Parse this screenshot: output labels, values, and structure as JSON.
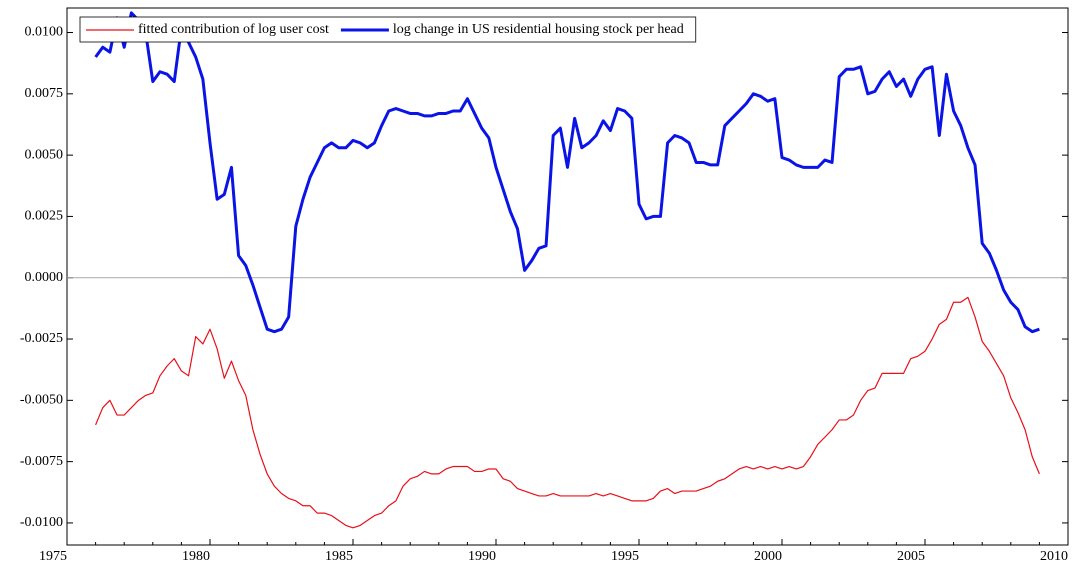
{
  "chart_data": {
    "type": "line",
    "x": [
      1976,
      1976.25,
      1976.5,
      1976.75,
      1977,
      1977.25,
      1977.5,
      1977.75,
      1978,
      1978.25,
      1978.5,
      1978.75,
      1979,
      1979.25,
      1979.5,
      1979.75,
      1980,
      1980.25,
      1980.5,
      1980.75,
      1981,
      1981.25,
      1981.5,
      1981.75,
      1982,
      1982.25,
      1982.5,
      1982.75,
      1983,
      1983.25,
      1983.5,
      1983.75,
      1984,
      1984.25,
      1984.5,
      1984.75,
      1985,
      1985.25,
      1985.5,
      1985.75,
      1986,
      1986.25,
      1986.5,
      1986.75,
      1987,
      1987.25,
      1987.5,
      1987.75,
      1988,
      1988.25,
      1988.5,
      1988.75,
      1989,
      1989.25,
      1989.5,
      1989.75,
      1990,
      1990.25,
      1990.5,
      1990.75,
      1991,
      1991.25,
      1991.5,
      1991.75,
      1992,
      1992.25,
      1992.5,
      1992.75,
      1993,
      1993.25,
      1993.5,
      1993.75,
      1994,
      1994.25,
      1994.5,
      1994.75,
      1995,
      1995.25,
      1995.5,
      1995.75,
      1996,
      1996.25,
      1996.5,
      1996.75,
      1997,
      1997.25,
      1997.5,
      1997.75,
      1998,
      1998.25,
      1998.5,
      1998.75,
      1999,
      1999.25,
      1999.5,
      1999.75,
      2000,
      2000.25,
      2000.5,
      2000.75,
      2001,
      2001.25,
      2001.5,
      2001.75,
      2002,
      2002.25,
      2002.5,
      2002.75,
      2003,
      2003.25,
      2003.5,
      2003.75,
      2004,
      2004.25,
      2004.5,
      2004.75,
      2005,
      2005.25,
      2005.5,
      2005.75,
      2006,
      2006.25,
      2006.5,
      2006.75,
      2007,
      2007.25,
      2007.5,
      2007.75,
      2008,
      2008.25,
      2008.5,
      2008.75,
      2009
    ],
    "series": [
      {
        "name": "fitted contribution of log user cost",
        "color": "#e8101a",
        "values": [
          -0.006,
          -0.0053,
          -0.005,
          -0.0056,
          -0.0056,
          -0.0053,
          -0.005,
          -0.0048,
          -0.0047,
          -0.004,
          -0.0036,
          -0.0033,
          -0.0038,
          -0.004,
          -0.0024,
          -0.0027,
          -0.0021,
          -0.0029,
          -0.0041,
          -0.0034,
          -0.0042,
          -0.0048,
          -0.0062,
          -0.0072,
          -0.008,
          -0.0085,
          -0.0088,
          -0.009,
          -0.0091,
          -0.0093,
          -0.0093,
          -0.0096,
          -0.0096,
          -0.0097,
          -0.0099,
          -0.0101,
          -0.0102,
          -0.0101,
          -0.0099,
          -0.0097,
          -0.0096,
          -0.0093,
          -0.0091,
          -0.0085,
          -0.0082,
          -0.0081,
          -0.0079,
          -0.008,
          -0.008,
          -0.0078,
          -0.0077,
          -0.0077,
          -0.0077,
          -0.0079,
          -0.0079,
          -0.0078,
          -0.0078,
          -0.0082,
          -0.0083,
          -0.0086,
          -0.0087,
          -0.0088,
          -0.0089,
          -0.0089,
          -0.0088,
          -0.0089,
          -0.0089,
          -0.0089,
          -0.0089,
          -0.0089,
          -0.0088,
          -0.0089,
          -0.0088,
          -0.0089,
          -0.009,
          -0.0091,
          -0.0091,
          -0.0091,
          -0.009,
          -0.0087,
          -0.0086,
          -0.0088,
          -0.0087,
          -0.0087,
          -0.0087,
          -0.0086,
          -0.0085,
          -0.0083,
          -0.0082,
          -0.008,
          -0.0078,
          -0.0077,
          -0.0078,
          -0.0077,
          -0.0078,
          -0.0077,
          -0.0078,
          -0.0077,
          -0.0078,
          -0.0077,
          -0.0073,
          -0.0068,
          -0.0065,
          -0.0062,
          -0.0058,
          -0.0058,
          -0.0056,
          -0.005,
          -0.0046,
          -0.0045,
          -0.0039,
          -0.0039,
          -0.0039,
          -0.0039,
          -0.0033,
          -0.0032,
          -0.003,
          -0.0025,
          -0.0019,
          -0.0017,
          -0.001,
          -0.001,
          -0.0008,
          -0.0016,
          -0.0026,
          -0.003,
          -0.0035,
          -0.004,
          -0.0049,
          -0.0055,
          -0.0062,
          -0.0073,
          -0.008
        ]
      },
      {
        "name": "log change in US residential housing stock per head",
        "color": "#0a14e6",
        "values": [
          0.009,
          0.0094,
          0.0092,
          0.0106,
          0.0094,
          0.0108,
          0.0105,
          0.01,
          0.008,
          0.0084,
          0.0083,
          0.008,
          0.0102,
          0.0096,
          0.009,
          0.0081,
          0.0055,
          0.0032,
          0.0034,
          0.0045,
          0.0009,
          0.0005,
          -0.0003,
          -0.0012,
          -0.0021,
          -0.0022,
          -0.0021,
          -0.0016,
          0.0021,
          0.0032,
          0.0041,
          0.0047,
          0.0053,
          0.0055,
          0.0053,
          0.0053,
          0.0056,
          0.0055,
          0.0053,
          0.0055,
          0.0062,
          0.0068,
          0.0069,
          0.0068,
          0.0067,
          0.0067,
          0.0066,
          0.0066,
          0.0067,
          0.0067,
          0.0068,
          0.0068,
          0.0073,
          0.0067,
          0.0061,
          0.0057,
          0.0045,
          0.0036,
          0.0027,
          0.002,
          0.0003,
          0.0007,
          0.0012,
          0.0013,
          0.0058,
          0.0061,
          0.0045,
          0.0065,
          0.0053,
          0.0055,
          0.0058,
          0.0064,
          0.006,
          0.0069,
          0.0068,
          0.0065,
          0.003,
          0.0024,
          0.0025,
          0.0025,
          0.0055,
          0.0058,
          0.0057,
          0.0055,
          0.0047,
          0.0047,
          0.0046,
          0.0046,
          0.0062,
          0.0065,
          0.0068,
          0.0071,
          0.0075,
          0.0074,
          0.0072,
          0.0073,
          0.0049,
          0.0048,
          0.0046,
          0.0045,
          0.0045,
          0.0045,
          0.0048,
          0.0047,
          0.0082,
          0.0085,
          0.0085,
          0.0086,
          0.0075,
          0.0076,
          0.0081,
          0.0084,
          0.0078,
          0.0081,
          0.0074,
          0.0081,
          0.0085,
          0.0086,
          0.0058,
          0.0083,
          0.0068,
          0.0062,
          0.0053,
          0.0046,
          0.0014,
          0.001,
          0.0003,
          -0.0005,
          -0.001,
          -0.0013,
          -0.002,
          -0.0022,
          -0.0021
        ]
      }
    ],
    "xlim": [
      1975,
      2010
    ],
    "xticks": [
      1975,
      1980,
      1985,
      1990,
      1995,
      2000,
      2005,
      2010
    ],
    "ylim": [
      -0.0109,
      0.011
    ],
    "yticks": [
      {
        "value": -0.01,
        "label": "-0.0100"
      },
      {
        "value": -0.0075,
        "label": "-0.0075"
      },
      {
        "value": -0.005,
        "label": "-0.0050"
      },
      {
        "value": -0.0025,
        "label": "-0.0025"
      },
      {
        "value": 0,
        "label": "0.0000"
      },
      {
        "value": 0.0025,
        "label": "0.0025"
      },
      {
        "value": 0.005,
        "label": "0.0050"
      },
      {
        "value": 0.0075,
        "label": "0.0075"
      },
      {
        "value": 0.01,
        "label": "0.0100"
      }
    ],
    "legend": "upper left",
    "grid": false
  }
}
